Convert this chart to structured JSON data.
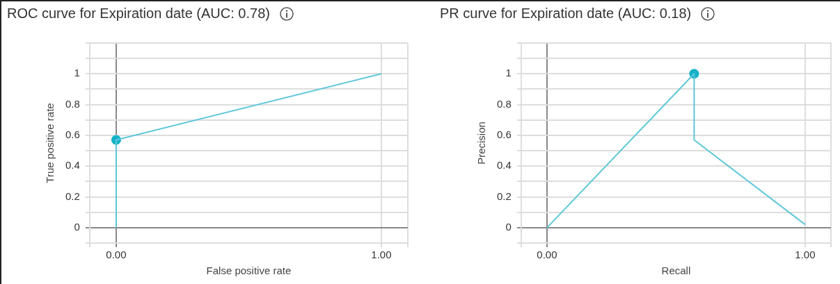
{
  "chart_data": [
    {
      "type": "line",
      "title": "ROC curve for Expiration date (AUC: 0.78)",
      "xlabel": "False positive rate",
      "ylabel": "True positive rate",
      "xlim": [
        -0.1,
        1.1
      ],
      "xticks": [
        {
          "value": -0.1,
          "label": null
        },
        {
          "value": 0,
          "label": "0.00"
        },
        {
          "value": 1,
          "label": "1.00"
        },
        {
          "value": 1.1,
          "label": null
        }
      ],
      "ylim": [
        -0.1,
        1.2
      ],
      "yticks": [
        {
          "value": -0.1,
          "label": null
        },
        0,
        {
          "value": 0.1,
          "label": null
        },
        0.2,
        {
          "value": 0.3,
          "label": null
        },
        0.4,
        {
          "value": 0.5,
          "label": null
        },
        0.6,
        {
          "value": 0.7,
          "label": null
        },
        0.8,
        {
          "value": 0.9,
          "label": null
        },
        1,
        {
          "value": 1.1,
          "label": null
        },
        {
          "value": 1.2,
          "label": null
        }
      ],
      "grid": true,
      "series": [
        {
          "type": "line",
          "color": "#5ec8d8",
          "x": [
            0,
            0,
            1
          ],
          "values": [
            0,
            0.57,
            1
          ],
          "marker": "none"
        },
        {
          "type": "scatter",
          "color": "#14b2c8",
          "x": [
            0
          ],
          "values": [
            0.57
          ],
          "marker": "circle"
        }
      ]
    },
    {
      "type": "line",
      "title": "PR curve for Expiration date (AUC: 0.18)",
      "xlabel": "Recall",
      "ylabel": "Precision",
      "xlim": [
        -0.1,
        1.1
      ],
      "xticks": [
        {
          "value": -0.1,
          "label": null
        },
        {
          "value": 0,
          "label": "0.00"
        },
        {
          "value": 1,
          "label": "1.00"
        },
        {
          "value": 1.1,
          "label": null
        }
      ],
      "ylim": [
        -0.1,
        1.2
      ],
      "yticks": [
        {
          "value": -0.1,
          "label": null
        },
        0,
        {
          "value": 0.1,
          "label": null
        },
        0.2,
        {
          "value": 0.3,
          "label": null
        },
        0.4,
        {
          "value": 0.5,
          "label": null
        },
        0.6,
        {
          "value": 0.7,
          "label": null
        },
        0.8,
        {
          "value": 0.9,
          "label": null
        },
        1,
        {
          "value": 1.1,
          "label": null
        },
        {
          "value": 1.2,
          "label": null
        }
      ],
      "grid": true,
      "series": [
        {
          "type": "line",
          "color": "#5ec8d8",
          "x": [
            0,
            0.57,
            0.57,
            1
          ],
          "values": [
            0,
            1,
            0.57,
            0.02
          ],
          "marker": "none"
        },
        {
          "type": "scatter",
          "color": "#14b2c8",
          "x": [
            0.57
          ],
          "values": [
            1
          ],
          "marker": "circle"
        }
      ]
    }
  ]
}
